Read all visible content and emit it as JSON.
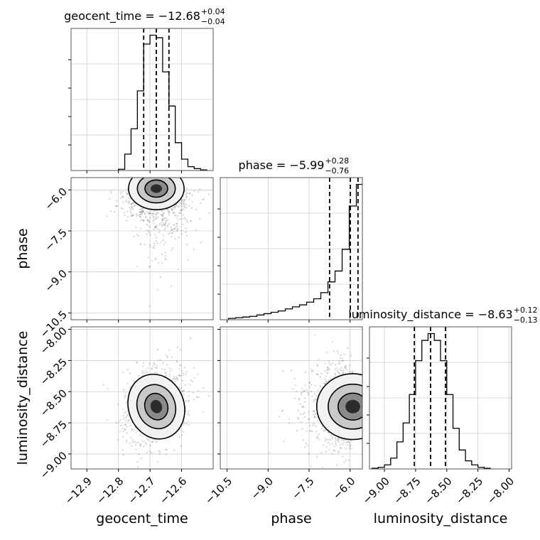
{
  "chart_data": {
    "type": "corner",
    "parameters": [
      {
        "name": "geocent_time",
        "axis_label": "geocent_time",
        "range": [
          -12.95,
          -12.5
        ],
        "ticks": [
          -12.9,
          -12.8,
          -12.7,
          -12.6
        ],
        "tick_labels": [
          "−12.9",
          "−12.8",
          "−12.7",
          "−12.6"
        ],
        "median": -12.68,
        "err_plus": 0.04,
        "err_minus": 0.04,
        "title": {
          "prefix": "geocent_time = −12.68",
          "plus": "+0.04",
          "minus": "−0.04"
        },
        "hist_bin_width": 0.02,
        "hist_bin_left": [
          -12.8,
          -12.78,
          -12.76,
          -12.74,
          -12.72,
          -12.7,
          -12.68,
          -12.66,
          -12.64,
          -12.62,
          -12.6,
          -12.58,
          -12.56,
          -12.54
        ],
        "hist_heights": [
          0.01,
          0.13,
          0.33,
          0.63,
          1.0,
          1.07,
          1.05,
          0.78,
          0.51,
          0.22,
          0.09,
          0.03,
          0.015,
          0.005
        ]
      },
      {
        "name": "phase",
        "axis_label": "phase",
        "range": [
          -10.75,
          -5.55
        ],
        "ticks": [
          -10.5,
          -9.0,
          -7.5,
          -6.0
        ],
        "tick_labels": [
          "−10.5",
          "−9.0",
          "−7.5",
          "−6.0"
        ],
        "median": -5.99,
        "err_plus": 0.28,
        "err_minus": 0.76,
        "title": {
          "prefix": "phase = −5.99",
          "plus": "+0.28",
          "minus": "−0.76"
        },
        "hist_bin_width": 0.26,
        "hist_bin_left": [
          -10.45,
          -10.19,
          -9.93,
          -9.67,
          -9.41,
          -9.15,
          -8.89,
          -8.63,
          -8.37,
          -8.11,
          -7.85,
          -7.59,
          -7.33,
          -7.07,
          -6.81,
          -6.55,
          -6.29,
          -6.03,
          -5.77
        ],
        "hist_heights": [
          0.01,
          0.015,
          0.02,
          0.025,
          0.035,
          0.045,
          0.055,
          0.065,
          0.08,
          0.095,
          0.11,
          0.13,
          0.155,
          0.2,
          0.28,
          0.36,
          0.52,
          0.84,
          1.0
        ]
      },
      {
        "name": "luminosity_distance",
        "axis_label": "luminosity_distance",
        "range": [
          -9.12,
          -7.98
        ],
        "ticks": [
          -9.0,
          -8.75,
          -8.5,
          -8.25,
          -8.0
        ],
        "tick_labels": [
          "−9.00",
          "−8.75",
          "−8.50",
          "−8.25",
          "−8.00"
        ],
        "y_ticks": [
          -9.0,
          -8.75,
          -8.5,
          -8.25,
          -8.0
        ],
        "y_tick_labels": [
          "−9.00",
          "−8.75",
          "−8.50",
          "−8.25",
          "−8.00"
        ],
        "median": -8.63,
        "err_plus": 0.12,
        "err_minus": 0.13,
        "title": {
          "prefix": "luminosity_distance = −8.63",
          "plus": "+0.12",
          "minus": "−0.13"
        },
        "hist_bin_width": 0.05,
        "hist_bin_left": [
          -9.1,
          -9.05,
          -9.0,
          -8.95,
          -8.9,
          -8.85,
          -8.8,
          -8.75,
          -8.7,
          -8.65,
          -8.6,
          -8.55,
          -8.5,
          -8.45,
          -8.4,
          -8.35,
          -8.3,
          -8.25,
          -8.2
        ],
        "hist_heights": [
          0.005,
          0.012,
          0.03,
          0.08,
          0.2,
          0.34,
          0.55,
          0.8,
          0.95,
          1.0,
          0.95,
          0.8,
          0.55,
          0.3,
          0.14,
          0.06,
          0.03,
          0.012,
          0.005
        ]
      }
    ],
    "density_2d": [
      {
        "x": "geocent_time",
        "y": "phase",
        "mode": [
          -12.68,
          -5.95
        ],
        "spread": [
          0.04,
          0.35
        ]
      },
      {
        "x": "geocent_time",
        "y": "luminosity_distance",
        "mode": [
          -12.68,
          -8.62
        ],
        "spread": [
          0.04,
          0.12
        ]
      },
      {
        "x": "phase",
        "y": "luminosity_distance",
        "mode": [
          -5.9,
          -8.62
        ],
        "spread": [
          0.6,
          0.12
        ]
      }
    ],
    "grid": true,
    "quantile_lines": "dashed"
  }
}
